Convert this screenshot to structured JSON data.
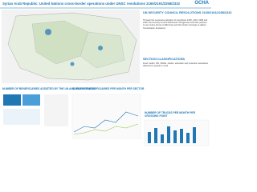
{
  "header": {
    "title": "Syrian Arab Republic: United Nations cross-border operations under UNSC resolutions 2165/2191/2258/2332",
    "logo": "OCHA"
  },
  "sidebar": {
    "resolutions_heading": "UN SECURITY COUNCIL RESOLUTIONS 2165/2191/2258/2332",
    "resolutions_text": "Through the successive adoption of resolutions 2165, 2191, 2258 and 2332, the Security Council authorized UN agencies and their partners to use routes across conflict lines and the border crossings to deliver humanitarian assistance.",
    "classifications_heading": "SECTION CLASSIFICATIONS",
    "classifications_text": "Food, health, NFI, WASH, shelter, education and protection assistance delivered to people in need."
  },
  "panels": {
    "beneficiaries_heading": "NUMBER OF BENEFICIARIES ASSISTED BY THE UN AND ITS PARTNERS",
    "per_sector_heading": "NUMBER OF BENEFICIARIES PER MONTH PER SECTOR",
    "trucks_heading": "NUMBER OF TRUCKS PER MONTH PER CROSSING POINT"
  }
}
